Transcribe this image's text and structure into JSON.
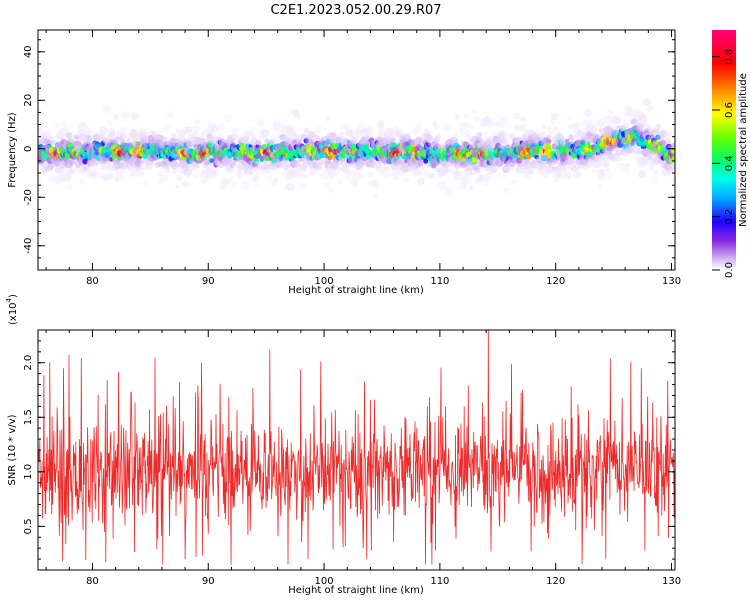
{
  "title": "C2E1.2023.052.00.29.R07",
  "colors": {
    "snr_line": "#ee2b2b",
    "colormap": [
      "#ffffff",
      "#d8bff5",
      "#8a2be2",
      "#2200ff",
      "#00aaff",
      "#00ffee",
      "#00ff66",
      "#66ff00",
      "#ffff00",
      "#ff8800",
      "#ff0000",
      "#ff0077"
    ]
  },
  "chart_data": [
    {
      "type": "heatmap",
      "name": "spectrogram",
      "xlabel": "Height of straight line (km)",
      "ylabel": "Frequency (Hz)",
      "xlim": [
        75.3,
        130.3
      ],
      "ylim": [
        -50,
        49
      ],
      "xticks": [
        "80",
        "90",
        "100",
        "110",
        "120",
        "130"
      ],
      "yticks": [
        "40",
        "20",
        "0",
        "-20",
        "-40"
      ],
      "ridge_frequency_hz": {
        "x": [
          75.5,
          80,
          85,
          90,
          95,
          100,
          105,
          110,
          115,
          120,
          123,
          125,
          127,
          130
        ],
        "y": [
          -2,
          -1,
          -1,
          -2,
          -2,
          -1,
          -1,
          -2,
          -2,
          -1,
          0,
          3,
          5,
          -3
        ]
      }
    },
    {
      "type": "colorbar",
      "label": "Normalized spectral amplitude",
      "range": [
        0,
        0.9
      ],
      "ticks": [
        "0.0",
        "0.2",
        "0.4",
        "0.6",
        "0.8"
      ]
    },
    {
      "type": "line",
      "name": "snr",
      "xlabel": "Height of straight line (km)",
      "ylabel": "SNR (10 * v/v)",
      "multiplier": "(x10",
      "multiplier_exp": "4",
      "multiplier_close": ")",
      "xlim": [
        75.3,
        130.3
      ],
      "ylim": [
        0.1,
        2.3
      ],
      "yunit": "x10^4",
      "xticks": [
        "80",
        "90",
        "100",
        "110",
        "120",
        "130"
      ],
      "yticks": [
        "0.5",
        "1.0",
        "1.5",
        "2.0"
      ],
      "mean_y": 1.0,
      "peaks": [
        {
          "x": 77.5,
          "y": 1.95
        },
        {
          "x": 95.3,
          "y": 2.12
        },
        {
          "x": 99.7,
          "y": 2.01
        },
        {
          "x": 114.2,
          "y": 2.3
        },
        {
          "x": 124.7,
          "y": 2.04
        },
        {
          "x": 127.4,
          "y": 1.95
        }
      ],
      "troughs": [
        {
          "x": 98.6,
          "y": 0.2
        },
        {
          "x": 103.7,
          "y": 0.2
        },
        {
          "x": 114.4,
          "y": 0.27
        }
      ]
    }
  ]
}
